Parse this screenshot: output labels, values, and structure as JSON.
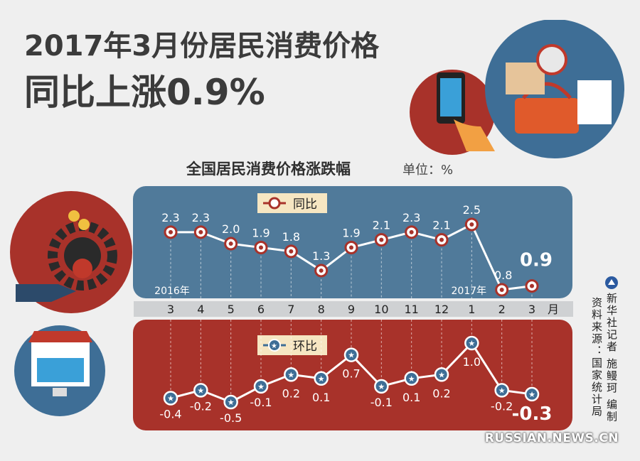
{
  "headline": {
    "line1": "2017年3月份居民消费价格",
    "line2": "同比上涨0.9%"
  },
  "chart_heading": "全国居民消费价格涨跌幅",
  "unit_label": "单位：%",
  "credits": {
    "agency": "新华社记者  施鳗珂  编制",
    "source": "资料来源：国家统计局"
  },
  "watermark": "RUSSIAN.NEWS.CN",
  "colors": {
    "background": "#efefef",
    "yoy_panel": "#507a9a",
    "mom_panel": "#a8322a",
    "label_box": "#f6e6c2",
    "marker_yoy": "#c0392b",
    "marker_mom": "#3e6e96"
  },
  "chart_data": [
    {
      "type": "line",
      "name": "同比",
      "categories": [
        "3",
        "4",
        "5",
        "6",
        "7",
        "8",
        "9",
        "10",
        "11",
        "12",
        "1",
        "2",
        "3"
      ],
      "category_unit": "月",
      "year_labels": [
        {
          "index": 0,
          "text": "2016年"
        },
        {
          "index": 10,
          "text": "2017年"
        }
      ],
      "values": [
        2.3,
        2.3,
        2.0,
        1.9,
        1.8,
        1.3,
        1.9,
        2.1,
        2.3,
        2.1,
        2.5,
        0.8,
        0.9
      ],
      "value_labels": [
        "2.3",
        "2.3",
        "2.0",
        "1.9",
        "1.8",
        "1.3",
        "1.9",
        "2.1",
        "2.3",
        "2.1",
        "2.5",
        "0.8",
        "0.9"
      ],
      "highlight_last": true
    },
    {
      "type": "line",
      "name": "环比",
      "categories": [
        "3",
        "4",
        "5",
        "6",
        "7",
        "8",
        "9",
        "10",
        "11",
        "12",
        "1",
        "2",
        "3"
      ],
      "values": [
        -0.4,
        -0.2,
        -0.5,
        -0.1,
        0.2,
        0.1,
        0.7,
        -0.1,
        0.1,
        0.2,
        1.0,
        -0.2,
        -0.3
      ],
      "value_labels": [
        "-0.4",
        "-0.2",
        "-0.5",
        "-0.1",
        "0.2",
        "0.1",
        "0.7",
        "-0.1",
        "0.1",
        "0.2",
        "1.0",
        "-0.2",
        "-0.3"
      ],
      "highlight_last": true
    }
  ]
}
